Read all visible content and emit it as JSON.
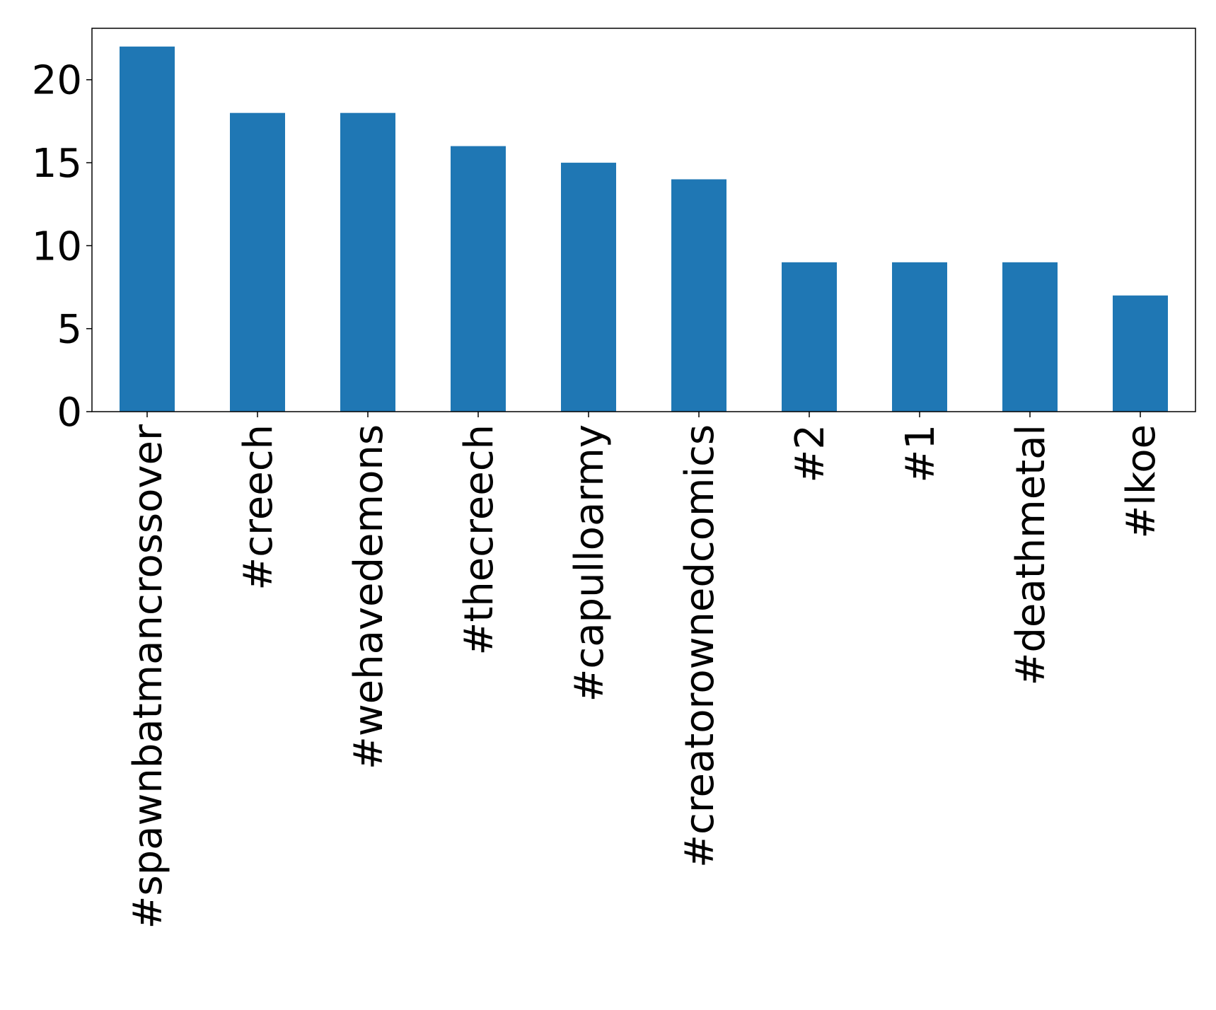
{
  "chart_data": {
    "type": "bar",
    "title": "",
    "xlabel": "",
    "ylabel": "",
    "categories": [
      "#spawnbatmancrossover",
      "#creech",
      "#wehavedemons",
      "#thecreech",
      "#capulloarmy",
      "#creatorownedcomics",
      "#2",
      "#1",
      "#deathmetal",
      "#lkoe"
    ],
    "values": [
      22,
      18,
      18,
      16,
      15,
      14,
      9,
      9,
      9,
      7
    ],
    "ylim": [
      0,
      23.1
    ],
    "yticks": [
      0,
      5,
      10,
      15,
      20
    ],
    "grid": false,
    "legend": "none",
    "bar_color": "#1f77b4"
  }
}
